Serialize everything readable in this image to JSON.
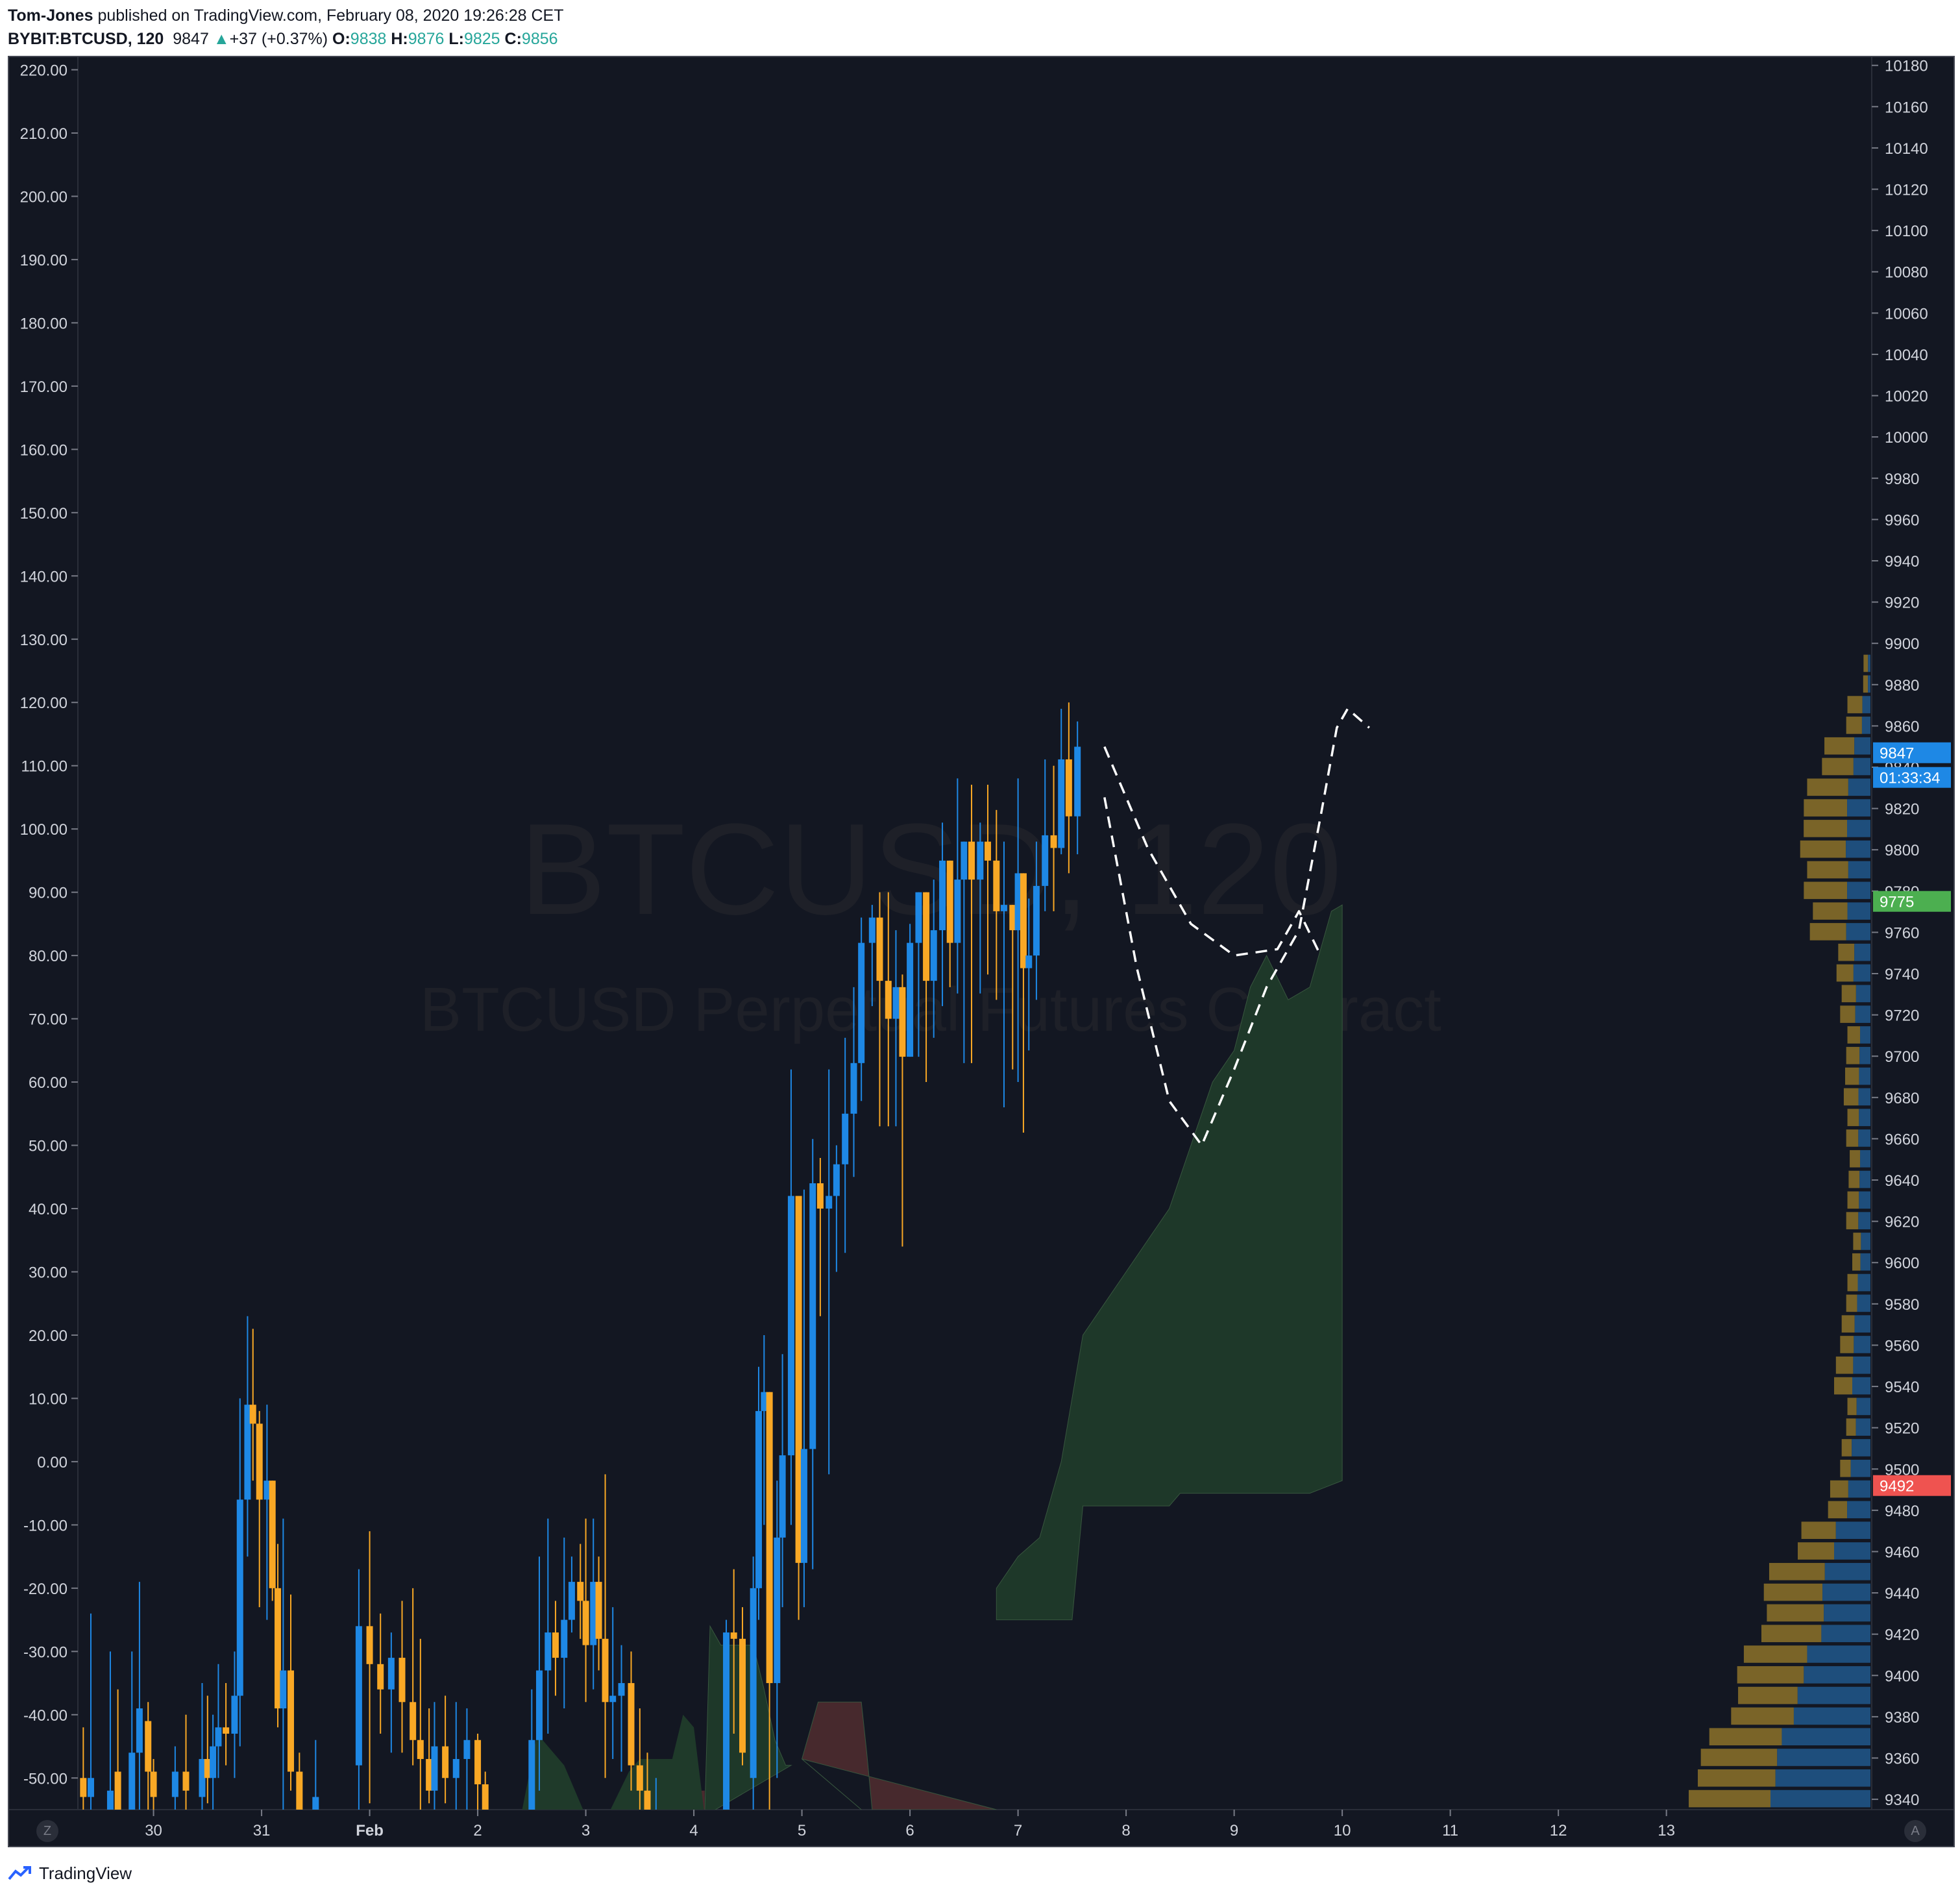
{
  "header": {
    "author": "Tom-Jones",
    "published_text": " published on TradingView.com, February 08, 2020 19:26:28 CET",
    "symbol": "BYBIT:BTCUSD, 120",
    "last": "9847",
    "change_arrow": "▲",
    "change": "+37 (+0.37%)",
    "o_label": "O:",
    "o_value": "9838",
    "h_label": "H:",
    "h_value": "9876",
    "l_label": "L:",
    "l_value": "9825",
    "c_label": "C:",
    "c_value": "9856"
  },
  "watermark": {
    "line1": "BTCUSD, 120",
    "line2": "BTCUSD Perpetual Futures Contract"
  },
  "axis_buttons": {
    "left": "Z",
    "right": "A"
  },
  "price_badges": [
    {
      "label": "9847",
      "color": "#1e88e5"
    },
    {
      "label": "01:33:34",
      "color": "#1e88e5"
    },
    {
      "label": "9775",
      "color": "#4caf50"
    },
    {
      "label": "9492",
      "color": "#ef5350"
    }
  ],
  "footer": {
    "brand": "TradingView",
    "icon": "tradingview-logo-icon"
  },
  "colors": {
    "background": "#131722",
    "bull": "#1e88e5",
    "bear": "#f9a825",
    "cloud_green": "#1f3a2a",
    "cloud_red": "#4a2a2e",
    "vp_blue": "#1e4e7c",
    "vp_gold": "#7a6428",
    "axis_text": "#d1d4dc"
  },
  "chart_data": {
    "type": "candlestick",
    "title": "",
    "left_axis": {
      "ticks": [
        "220.00",
        "210.00",
        "200.00",
        "190.00",
        "180.00",
        "170.00",
        "160.00",
        "150.00",
        "140.00",
        "130.00",
        "120.00",
        "110.00",
        "100.00",
        "90.00",
        "80.00",
        "70.00",
        "60.00",
        "50.00",
        "40.00",
        "30.00",
        "20.00",
        "10.00",
        "0.00",
        "-10.00",
        "-20.00",
        "-30.00",
        "-40.00",
        "-50.00"
      ],
      "range": [
        -55,
        222
      ]
    },
    "right_axis": {
      "ticks": [
        "10180",
        "10160",
        "10140",
        "10120",
        "10100",
        "10080",
        "10060",
        "10040",
        "10020",
        "10000",
        "9980",
        "9960",
        "9940",
        "9920",
        "9900",
        "9880",
        "9860",
        "9840",
        "9820",
        "9800",
        "9780",
        "9760",
        "9740",
        "9720",
        "9700",
        "9680",
        "9660",
        "9640",
        "9620",
        "9600",
        "9580",
        "9560",
        "9540",
        "9520",
        "9500",
        "9480",
        "9460",
        "9440",
        "9420",
        "9400",
        "9380",
        "9360",
        "9340"
      ],
      "range": [
        9335,
        10184
      ]
    },
    "x_axis": {
      "labels": [
        "30",
        "31",
        "Feb",
        "2",
        "3",
        "4",
        "5",
        "6",
        "7",
        "8",
        "9",
        "10",
        "11",
        "12",
        "13"
      ],
      "start_day": 29.3,
      "end_day": 13.9
    },
    "candles": [
      [
        29.35,
        -50,
        -53,
        -42,
        -62
      ],
      [
        29.42,
        -53,
        -50,
        -24,
        -60
      ],
      [
        29.6,
        -60,
        -52,
        -30,
        -65
      ],
      [
        29.67,
        -49,
        -56,
        -36,
        -60
      ],
      [
        29.8,
        -55,
        -46,
        -30,
        -62
      ],
      [
        29.87,
        -46,
        -39,
        -19,
        -60
      ],
      [
        29.95,
        -41,
        -49,
        -38,
        -58
      ],
      [
        30.0,
        -49,
        -53,
        -47,
        -58
      ],
      [
        30.2,
        -53,
        -49,
        -45,
        -58
      ],
      [
        30.3,
        -49,
        -52,
        -40,
        -56
      ],
      [
        30.45,
        -53,
        -47,
        -35,
        -60
      ],
      [
        30.5,
        -47,
        -50,
        -37,
        -54
      ],
      [
        30.55,
        -50,
        -45,
        -40,
        -57
      ],
      [
        30.6,
        -45,
        -42,
        -32,
        -50
      ],
      [
        30.67,
        -42,
        -43,
        -35,
        -48
      ],
      [
        30.75,
        -43,
        -37,
        -30,
        -50
      ],
      [
        30.8,
        -37,
        -6,
        10,
        -45
      ],
      [
        30.87,
        -6,
        9,
        23,
        -15
      ],
      [
        30.92,
        9,
        6,
        21,
        -3
      ],
      [
        30.98,
        6,
        -6,
        8,
        -23
      ],
      [
        31.05,
        -6,
        -3,
        9,
        -25
      ],
      [
        31.1,
        -3,
        -20,
        -3,
        -22
      ],
      [
        31.15,
        -20,
        -39,
        -13,
        -42
      ],
      [
        31.2,
        -39,
        -33,
        -9,
        -58
      ],
      [
        31.27,
        -33,
        -49,
        -21,
        -52
      ],
      [
        31.35,
        -49,
        -57,
        -46,
        -62
      ],
      [
        31.5,
        -57,
        -53,
        -44,
        -60
      ],
      [
        31.9,
        -48,
        -26,
        -17,
        -58
      ],
      [
        32.0,
        -26,
        -32,
        -11,
        -54
      ],
      [
        32.1,
        -32,
        -36,
        -24,
        -43
      ],
      [
        32.2,
        -36,
        -31,
        -27,
        -46
      ],
      [
        32.3,
        -31,
        -38,
        -22,
        -46
      ],
      [
        32.4,
        -38,
        -44,
        -20,
        -48
      ],
      [
        32.47,
        -44,
        -47,
        -28,
        -58
      ],
      [
        32.55,
        -47,
        -52,
        -39,
        -54
      ],
      [
        32.6,
        -52,
        -45,
        -38,
        -57
      ],
      [
        32.7,
        -45,
        -50,
        -37,
        -54
      ],
      [
        32.8,
        -50,
        -47,
        -38,
        -57
      ],
      [
        32.9,
        -47,
        -44,
        -39,
        -55
      ],
      [
        33.0,
        -44,
        -51,
        -43,
        -55
      ],
      [
        33.07,
        -51,
        -56,
        -49,
        -62
      ],
      [
        33.5,
        -57,
        -44,
        -36,
        -61
      ],
      [
        33.57,
        -44,
        -33,
        -15,
        -52
      ],
      [
        33.65,
        -33,
        -27,
        -9,
        -43
      ],
      [
        33.72,
        -27,
        -31,
        -22,
        -37
      ],
      [
        33.8,
        -31,
        -25,
        -12,
        -39
      ],
      [
        33.87,
        -25,
        -19,
        -15,
        -27
      ],
      [
        33.95,
        -19,
        -22,
        -13,
        -28
      ],
      [
        34.0,
        -22,
        -29,
        -9,
        -38
      ],
      [
        34.07,
        -29,
        -19,
        -9,
        -36
      ],
      [
        34.12,
        -19,
        -28,
        -15,
        -33
      ],
      [
        34.18,
        -28,
        -38,
        -2,
        -50
      ],
      [
        34.25,
        -38,
        -37,
        -23,
        -47
      ],
      [
        34.33,
        -37,
        -35,
        -29,
        -49
      ],
      [
        34.42,
        -35,
        -48,
        -30,
        -52
      ],
      [
        34.5,
        -48,
        -52,
        -39,
        -55
      ],
      [
        34.57,
        -52,
        -56,
        -46,
        -58
      ],
      [
        34.65,
        -56,
        -55,
        -50,
        -58
      ],
      [
        35.3,
        -56,
        -27,
        -25,
        -58
      ],
      [
        35.37,
        -27,
        -28,
        -17,
        -43
      ],
      [
        35.45,
        -28,
        -46,
        -23,
        -48
      ],
      [
        35.55,
        -50,
        -20,
        -15,
        -60
      ],
      [
        35.6,
        -20,
        8,
        15,
        -25
      ],
      [
        35.65,
        8,
        11,
        20,
        -10
      ],
      [
        35.7,
        11,
        -35,
        -3,
        -55
      ],
      [
        35.77,
        -35,
        -12,
        -3,
        -50
      ],
      [
        35.82,
        -12,
        1,
        17,
        -23
      ],
      [
        35.9,
        1,
        42,
        62,
        -10
      ],
      [
        35.97,
        42,
        -16,
        10,
        -25
      ],
      [
        36.02,
        -16,
        2,
        43,
        -23
      ],
      [
        36.1,
        2,
        44,
        51,
        -17
      ],
      [
        36.17,
        44,
        40,
        48,
        23
      ],
      [
        36.25,
        40,
        42,
        62,
        -2
      ],
      [
        36.32,
        42,
        47,
        50,
        30
      ],
      [
        36.4,
        47,
        55,
        67,
        33
      ],
      [
        36.48,
        55,
        63,
        75,
        45
      ],
      [
        36.55,
        63,
        82,
        86,
        57
      ],
      [
        36.65,
        82,
        86,
        88,
        72
      ],
      [
        36.72,
        86,
        76,
        90,
        53
      ],
      [
        36.8,
        76,
        70,
        90,
        53
      ],
      [
        36.87,
        70,
        75,
        84,
        53
      ],
      [
        36.93,
        75,
        64,
        77,
        34
      ],
      [
        37.0,
        64,
        82,
        85,
        69
      ],
      [
        37.08,
        82,
        90,
        87,
        64
      ],
      [
        37.15,
        90,
        76,
        90,
        60
      ],
      [
        37.22,
        76,
        84,
        92,
        67
      ],
      [
        37.3,
        84,
        95,
        101,
        72
      ],
      [
        37.37,
        95,
        82,
        92,
        75
      ],
      [
        37.44,
        82,
        92,
        108,
        74
      ],
      [
        37.5,
        92,
        98,
        97,
        63
      ],
      [
        37.57,
        98,
        92,
        107,
        63
      ],
      [
        37.65,
        92,
        98,
        101,
        74
      ],
      [
        37.72,
        98,
        95,
        107,
        77
      ],
      [
        37.8,
        95,
        87,
        103,
        73
      ],
      [
        37.87,
        87,
        88,
        98,
        56
      ],
      [
        37.95,
        88,
        84,
        84,
        62
      ],
      [
        38.0,
        84,
        93,
        108,
        60
      ],
      [
        38.05,
        93,
        78,
        86,
        52
      ],
      [
        38.1,
        78,
        80,
        89,
        65
      ],
      [
        38.17,
        80,
        91,
        98,
        73
      ],
      [
        38.25,
        91,
        99,
        111,
        87
      ],
      [
        38.33,
        99,
        97,
        110,
        87
      ],
      [
        38.4,
        97,
        111,
        119,
        96
      ],
      [
        38.47,
        111,
        102,
        120,
        93
      ],
      [
        38.55,
        102,
        113,
        117,
        96
      ]
    ],
    "ichimoku": {
      "green_cloud_upper": [
        [
          35.1,
          -56
        ],
        [
          35.15,
          -26
        ],
        [
          35.25,
          -29
        ],
        [
          35.55,
          -29
        ],
        [
          35.65,
          -36
        ],
        [
          35.75,
          -44
        ],
        [
          35.85,
          -48
        ],
        [
          35.9,
          -48
        ]
      ],
      "green_cloud_lower": [
        [
          35.9,
          -48
        ],
        [
          35.1,
          -56
        ]
      ],
      "red_cloud": [
        [
          36.0,
          -47
        ],
        [
          36.15,
          -38
        ],
        [
          36.55,
          -38
        ],
        [
          36.6,
          -46
        ],
        [
          36.65,
          -55
        ],
        [
          37.8,
          -55
        ]
      ],
      "red_cloud_low": [
        [
          36.0,
          -47
        ],
        [
          36.55,
          -55
        ]
      ],
      "future_green_upper": [
        [
          37.8,
          -20
        ],
        [
          38.0,
          -15
        ],
        [
          38.2,
          -12
        ],
        [
          38.4,
          0
        ],
        [
          38.6,
          20
        ],
        [
          38.8,
          25
        ],
        [
          39.0,
          30
        ],
        [
          39.2,
          35
        ],
        [
          39.4,
          40
        ],
        [
          39.6,
          50
        ],
        [
          39.8,
          60
        ],
        [
          40.0,
          65
        ],
        [
          40.15,
          75
        ],
        [
          40.3,
          80
        ],
        [
          40.5,
          73
        ],
        [
          40.7,
          75
        ],
        [
          40.9,
          87
        ],
        [
          41.0,
          88
        ]
      ],
      "future_green_lower": [
        [
          41.0,
          -3
        ],
        [
          40.7,
          -5
        ],
        [
          39.6,
          -5
        ],
        [
          39.5,
          -5
        ],
        [
          39.4,
          -7
        ],
        [
          38.6,
          -7
        ],
        [
          38.5,
          -25
        ],
        [
          37.8,
          -25
        ]
      ]
    },
    "projection_paths": [
      [
        [
          38.8,
          113
        ],
        [
          39.2,
          97
        ],
        [
          39.6,
          85
        ],
        [
          40.0,
          80
        ],
        [
          40.4,
          81
        ],
        [
          40.6,
          87
        ],
        [
          40.8,
          80
        ]
      ],
      [
        [
          38.8,
          105
        ],
        [
          39.1,
          78
        ],
        [
          39.4,
          57
        ],
        [
          39.7,
          50
        ],
        [
          40.0,
          62
        ],
        [
          40.3,
          75
        ],
        [
          40.6,
          84
        ],
        [
          40.8,
          102
        ],
        [
          40.95,
          116
        ],
        [
          41.05,
          119
        ],
        [
          41.25,
          116
        ]
      ]
    ],
    "volume_profile_levels": [
      9340,
      9360,
      9380,
      9400,
      9420,
      9440,
      9460,
      9480,
      9500,
      9520,
      9540,
      9560,
      9580,
      9600,
      9620,
      9640,
      9660,
      9680,
      9700,
      9720,
      9740,
      9760,
      9780,
      9800,
      9820,
      9840,
      9860,
      9880
    ],
    "volume_profile_total": [
      150,
      140,
      115,
      110,
      90,
      88,
      60,
      35,
      25,
      20,
      30,
      25,
      20,
      15,
      20,
      18,
      20,
      22,
      20,
      25,
      28,
      50,
      55,
      58,
      55,
      40,
      20,
      6
    ],
    "volume_profile_blue_share": [
      0.55,
      0.55,
      0.55,
      0.5,
      0.45,
      0.45,
      0.5,
      0.55,
      0.65,
      0.6,
      0.5,
      0.55,
      0.55,
      0.55,
      0.5,
      0.5,
      0.5,
      0.45,
      0.45,
      0.5,
      0.5,
      0.4,
      0.35,
      0.35,
      0.35,
      0.35,
      0.35,
      0.35
    ]
  }
}
